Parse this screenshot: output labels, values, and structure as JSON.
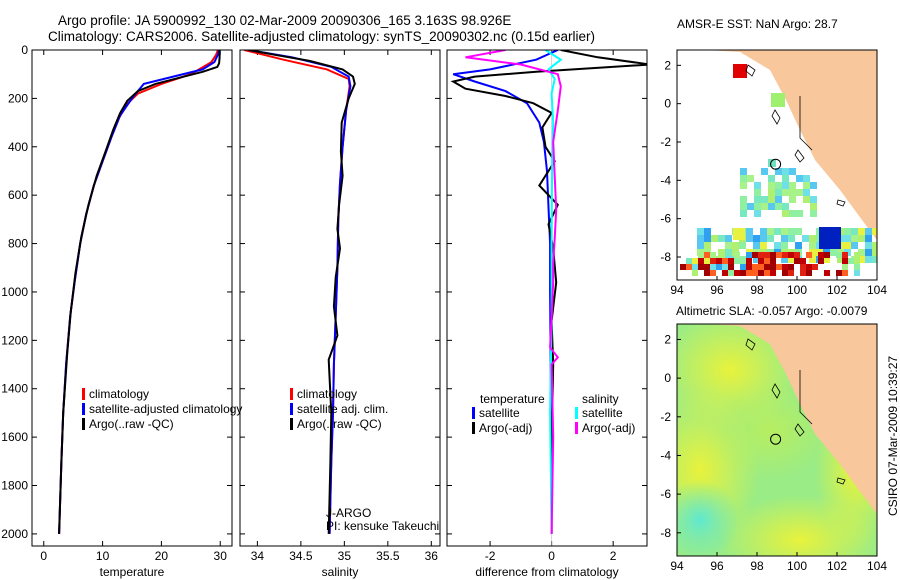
{
  "title_line1": "Argo profile: JA 5900992_130 02-Mar-2009 20090306_165 3.163S 98.926E",
  "title_line2": "Climatology: CARS2006. Satellite-adjusted climatology: synTS_20090302.nc (0.15d earlier)",
  "credit": "CSIRO 07-Mar-2009 10:39:27",
  "colors": {
    "clim": "#ff0000",
    "sat": "#0000ff",
    "argo": "#000000",
    "sal_sat": "#00ffff",
    "sal_argo": "#ff00ff",
    "land": "#f9c79c"
  },
  "chart_data": [
    {
      "type": "line",
      "id": "temperature",
      "xlabel": "temperature",
      "xlim": [
        -2,
        32
      ],
      "ylim": [
        0,
        2050
      ],
      "xticks": [
        0,
        10,
        20,
        30
      ],
      "yticks": [
        0,
        200,
        400,
        600,
        800,
        1000,
        1200,
        1400,
        1600,
        1800,
        2000
      ],
      "legend": [
        "climatology",
        "satellite-adjusted climatology",
        "Argo(..raw -QC)"
      ],
      "series": [
        {
          "name": "climatology",
          "color": "#ff0000",
          "x": [
            29.6,
            29.3,
            28.5,
            25,
            20,
            16,
            14.3,
            12.8,
            11.5,
            10,
            8.5,
            7.2,
            6.2,
            5.3,
            4.5,
            3.8,
            3.3,
            3,
            2.6
          ],
          "y": [
            0,
            20,
            50,
            100,
            140,
            180,
            220,
            280,
            360,
            460,
            560,
            680,
            800,
            950,
            1100,
            1300,
            1500,
            1700,
            2000
          ]
        },
        {
          "name": "satellite-adjusted climatology",
          "color": "#0000ff",
          "x": [
            29.8,
            29.6,
            29,
            27,
            22,
            17,
            15,
            13,
            11.5,
            10,
            8.5,
            7.2,
            6.2,
            5.3,
            4.5,
            3.8,
            3.3,
            3,
            2.6
          ],
          "y": [
            0,
            20,
            50,
            80,
            110,
            140,
            200,
            270,
            360,
            460,
            560,
            680,
            800,
            950,
            1100,
            1300,
            1500,
            1700,
            2000
          ]
        },
        {
          "name": "Argo(..raw -QC)",
          "color": "#000000",
          "x": [
            29.9,
            29.9,
            29.8,
            29.5,
            27,
            23,
            19,
            16,
            14.2,
            13,
            11.8,
            10.5,
            9,
            7.6,
            6.4,
            5.4,
            4.6,
            4,
            3.3,
            3,
            2.6
          ],
          "y": [
            0,
            30,
            55,
            70,
            90,
            115,
            140,
            170,
            210,
            260,
            330,
            420,
            520,
            640,
            770,
            920,
            1080,
            1250,
            1500,
            1700,
            2000
          ]
        }
      ]
    },
    {
      "type": "line",
      "id": "salinity",
      "xlabel": "salinity",
      "xlim": [
        33.8,
        36.1
      ],
      "ylim": [
        0,
        2050
      ],
      "xticks": [
        34,
        34.5,
        35,
        35.5,
        36
      ],
      "legend": [
        "climatology",
        "satellite adj. clim.",
        "Argo(..raw -QC)"
      ],
      "annotation": [
        "J-ARGO",
        "PI: kensuke Takeuchi"
      ],
      "series": [
        {
          "name": "climatology",
          "color": "#ff0000",
          "x": [
            33.85,
            34.3,
            34.8,
            35.05,
            35.06,
            35.02,
            34.98,
            34.95,
            34.93,
            34.92,
            34.9,
            34.88,
            34.87,
            34.85,
            34.83
          ],
          "y": [
            0,
            40,
            80,
            120,
            150,
            250,
            400,
            550,
            700,
            900,
            1100,
            1300,
            1500,
            1700,
            2000
          ]
        },
        {
          "name": "satellite adj. clim.",
          "color": "#0000ff",
          "x": [
            33.9,
            34.4,
            34.85,
            35.05,
            35.07,
            35.02,
            34.98,
            34.95,
            34.93,
            34.92,
            34.9,
            34.88,
            34.87,
            34.85,
            34.83
          ],
          "y": [
            0,
            30,
            70,
            110,
            150,
            250,
            400,
            550,
            700,
            900,
            1100,
            1300,
            1500,
            1700,
            2000
          ]
        },
        {
          "name": "Argo(..raw -QC)",
          "color": "#000000",
          "x": [
            33.9,
            34.2,
            34.6,
            34.98,
            35.1,
            35.12,
            35.05,
            34.97,
            34.96,
            34.98,
            34.94,
            34.92,
            34.95,
            34.9,
            34.88,
            34.92,
            34.86,
            34.82,
            34.85,
            34.84,
            34.82
          ],
          "y": [
            0,
            20,
            45,
            80,
            110,
            140,
            200,
            300,
            420,
            520,
            640,
            740,
            820,
            940,
            1060,
            1180,
            1240,
            1280,
            1500,
            1700,
            2000
          ]
        }
      ]
    },
    {
      "type": "line",
      "id": "difference",
      "xlabel": "difference from climatology",
      "xlim": [
        -3.4,
        3.1
      ],
      "ylim": [
        0,
        2050
      ],
      "xticks": [
        -2,
        0,
        2
      ],
      "legend_left_title": "temperature",
      "legend_right_title": "salinity",
      "legend_left": [
        "satellite",
        "Argo(-adj)"
      ],
      "legend_right": [
        "satellite",
        "Argo(-adj)"
      ],
      "series": [
        {
          "name": "temperature satellite",
          "color": "#0000ff",
          "x": [
            0.2,
            -0.5,
            -2,
            -3.2,
            -2.5,
            -1.5,
            -0.8,
            -0.4,
            -0.25,
            -0.15,
            -0.1,
            -0.05,
            -0.05,
            -0.03,
            -0.02,
            0
          ],
          "y": [
            0,
            40,
            80,
            100,
            130,
            170,
            220,
            300,
            380,
            500,
            650,
            800,
            1000,
            1300,
            1600,
            2000
          ]
        },
        {
          "name": "temperature Argo(-adj)",
          "color": "#000000",
          "x": [
            0.3,
            1.5,
            3.2,
            -0.5,
            -2.5,
            -3.2,
            -2.8,
            -1.5,
            -0.6,
            0,
            -0.3,
            -0.2,
            0.1,
            -0.4,
            0.2,
            -0.1,
            0.05,
            0.15,
            0,
            0.05,
            0,
            0
          ],
          "y": [
            0,
            30,
            60,
            90,
            110,
            130,
            160,
            190,
            220,
            260,
            320,
            400,
            460,
            560,
            640,
            720,
            820,
            960,
            1120,
            1300,
            1600,
            2000
          ]
        },
        {
          "name": "salinity satellite",
          "color": "#00ffff",
          "x": [
            -0.2,
            0.3,
            -0.1,
            0.1,
            0,
            0.05,
            0.02,
            0.01,
            0,
            0,
            -0.05,
            0
          ],
          "y": [
            0,
            40,
            80,
            120,
            180,
            300,
            450,
            600,
            800,
            1100,
            1500,
            2000
          ]
        },
        {
          "name": "salinity Argo(-adj)",
          "color": "#ff00ff",
          "x": [
            -1.5,
            -2.8,
            -1,
            0.2,
            0.3,
            0.2,
            0.05,
            0.1,
            0.15,
            0.1,
            0.05,
            0.05,
            0,
            -0.05,
            0.2,
            0,
            0.05,
            0
          ],
          "y": [
            0,
            30,
            60,
            100,
            150,
            250,
            380,
            520,
            660,
            780,
            880,
            960,
            1100,
            1230,
            1270,
            1300,
            1600,
            2000
          ]
        }
      ]
    },
    {
      "type": "heatmap",
      "id": "sst-map",
      "title": "AMSR-E SST: NaN Argo: 28.7",
      "xlim": [
        94,
        104
      ],
      "ylim": [
        -9.2,
        2.8
      ],
      "xticks": [
        94,
        96,
        98,
        100,
        102,
        104
      ],
      "yticks": [
        2,
        0,
        -2,
        -4,
        -6,
        -8
      ],
      "argo_position": [
        98.93,
        -3.16
      ]
    },
    {
      "type": "heatmap",
      "id": "sla-map",
      "title": "Altimetric SLA: -0.057 Argo: -0.0079",
      "xlim": [
        94,
        104
      ],
      "ylim": [
        -9.2,
        2.8
      ],
      "xticks": [
        94,
        96,
        98,
        100,
        102,
        104
      ],
      "yticks": [
        2,
        0,
        -2,
        -4,
        -6,
        -8
      ],
      "argo_position": [
        98.93,
        -3.16
      ]
    }
  ]
}
